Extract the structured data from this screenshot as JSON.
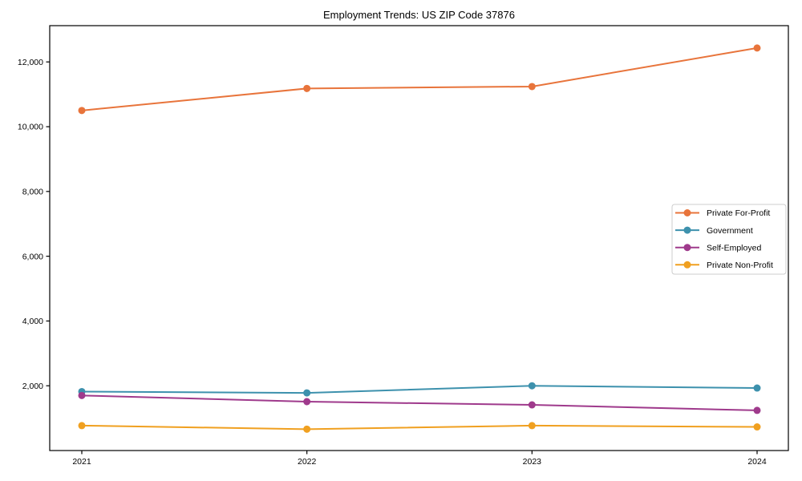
{
  "chart_data": {
    "type": "line",
    "title": "Employment Trends: US ZIP Code 37876",
    "categories": [
      "2021",
      "2022",
      "2023",
      "2024"
    ],
    "series": [
      {
        "name": "Private For-Profit",
        "color": "#e8743b",
        "values": [
          10500,
          11180,
          11240,
          12430
        ]
      },
      {
        "name": "Government",
        "color": "#3d91ad",
        "values": [
          1820,
          1780,
          2000,
          1930
        ]
      },
      {
        "name": "Self-Employed",
        "color": "#9f3a8c",
        "values": [
          1700,
          1510,
          1410,
          1240
        ]
      },
      {
        "name": "Private Non-Profit",
        "color": "#f0a020",
        "values": [
          770,
          660,
          770,
          730
        ]
      }
    ],
    "xlabel": "",
    "ylabel": "",
    "ylim": [
      0,
      13120
    ],
    "yticks": [
      2000,
      4000,
      6000,
      8000,
      10000,
      12000
    ],
    "ytick_labels": [
      "2,000",
      "4,000",
      "6,000",
      "8,000",
      "10,000",
      "12,000"
    ],
    "grid": false,
    "legend_position": "center-right",
    "marker": "circle",
    "axis_color": "#000000",
    "background_color": "#ffffff",
    "legend_border_color": "#cccccc"
  }
}
